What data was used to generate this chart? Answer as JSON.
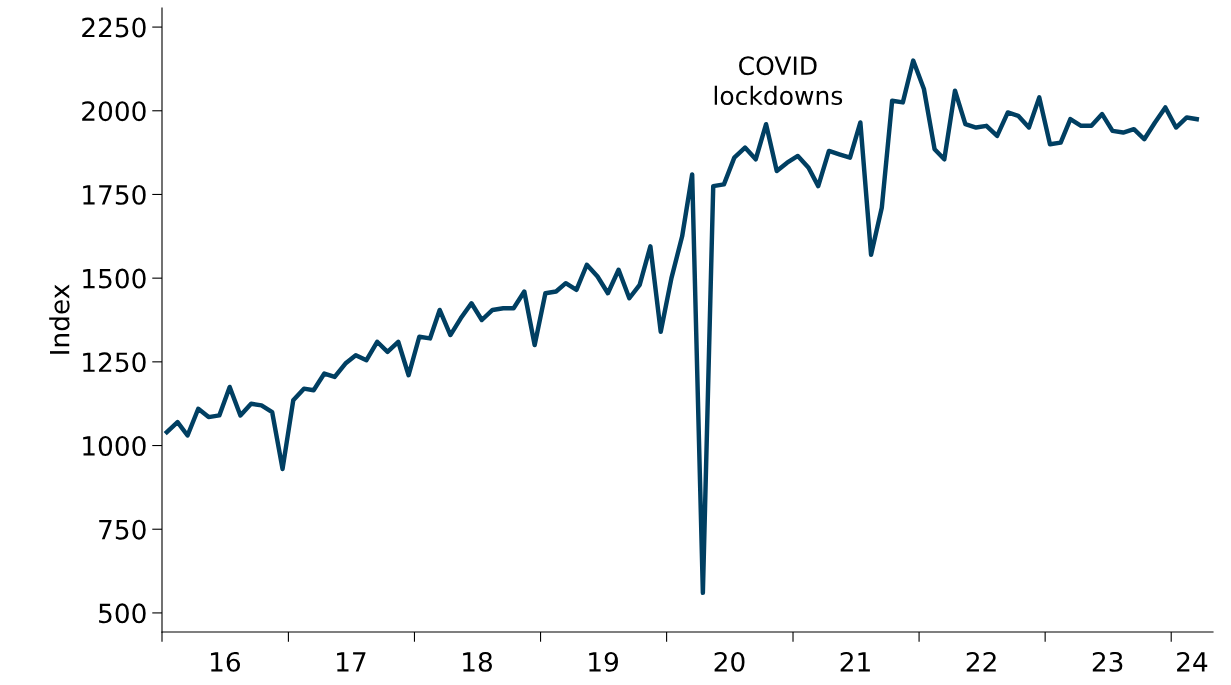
{
  "chart_data": {
    "type": "line",
    "ylabel": "Index",
    "x": [
      "2016-01-15",
      "2016-02-15",
      "2016-03-15",
      "2016-04-15",
      "2016-05-15",
      "2016-06-15",
      "2016-07-15",
      "2016-08-15",
      "2016-09-15",
      "2016-10-15",
      "2016-11-15",
      "2016-12-15",
      "2017-01-15",
      "2017-02-15",
      "2017-03-15",
      "2017-04-15",
      "2017-05-15",
      "2017-06-15",
      "2017-07-15",
      "2017-08-15",
      "2017-09-15",
      "2017-10-15",
      "2017-11-15",
      "2017-12-15",
      "2018-01-15",
      "2018-02-15",
      "2018-03-15",
      "2018-04-15",
      "2018-05-15",
      "2018-06-15",
      "2018-07-15",
      "2018-08-15",
      "2018-09-15",
      "2018-10-15",
      "2018-11-15",
      "2018-12-15",
      "2019-01-15",
      "2019-02-15",
      "2019-03-15",
      "2019-04-15",
      "2019-05-15",
      "2019-06-15",
      "2019-07-15",
      "2019-08-15",
      "2019-09-15",
      "2019-10-15",
      "2019-11-15",
      "2019-12-15",
      "2020-01-15",
      "2020-02-15",
      "2020-03-15",
      "2020-04-15",
      "2020-05-15",
      "2020-06-15",
      "2020-07-15",
      "2020-08-15",
      "2020-09-15",
      "2020-10-15",
      "2020-11-15",
      "2020-12-15",
      "2021-01-15",
      "2021-02-15",
      "2021-03-15",
      "2021-04-15",
      "2021-05-15",
      "2021-06-15",
      "2021-07-15",
      "2021-08-15",
      "2021-09-15",
      "2021-10-15",
      "2021-11-15",
      "2021-12-15",
      "2022-01-15",
      "2022-02-15",
      "2022-03-15",
      "2022-04-15",
      "2022-05-15",
      "2022-06-15",
      "2022-07-15",
      "2022-08-15",
      "2022-09-15",
      "2022-10-15",
      "2022-11-15",
      "2022-12-15",
      "2023-01-15",
      "2023-02-15",
      "2023-03-15",
      "2023-04-15",
      "2023-05-15",
      "2023-06-15",
      "2023-07-15",
      "2023-08-15",
      "2023-09-15",
      "2023-10-15",
      "2023-11-15",
      "2023-12-15",
      "2024-01-15",
      "2024-02-15",
      "2024-03-15"
    ],
    "series": [
      {
        "color": "#003f62",
        "values": [
          1040,
          1070,
          1030,
          1110,
          1085,
          1090,
          1175,
          1090,
          1125,
          1120,
          1100,
          930,
          1135,
          1170,
          1165,
          1215,
          1205,
          1245,
          1270,
          1255,
          1310,
          1280,
          1310,
          1210,
          1325,
          1320,
          1405,
          1330,
          1380,
          1425,
          1375,
          1405,
          1410,
          1410,
          1460,
          1300,
          1455,
          1460,
          1485,
          1465,
          1540,
          1505,
          1455,
          1525,
          1440,
          1480,
          1595,
          1340,
          1500,
          1625,
          1810,
          560,
          1775,
          1780,
          1860,
          1890,
          1855,
          1960,
          1820,
          1845,
          1865,
          1830,
          1775,
          1880,
          1870,
          1860,
          1965,
          1570,
          1710,
          2030,
          2025,
          2150,
          2065,
          1885,
          1855,
          2060,
          1960,
          1950,
          1955,
          1925,
          1995,
          1985,
          1950,
          2040,
          1900,
          1905,
          1975,
          1955,
          1955,
          1990,
          1940,
          1935,
          1945,
          1915,
          1965,
          2010,
          1950,
          1980,
          1975
        ]
      }
    ],
    "xlim": [
      "2016-01-01",
      "2024-05-01"
    ],
    "xticks": [
      {
        "value": "2016-01-01",
        "label": null
      },
      {
        "value": "2017-01-01",
        "label": null
      },
      {
        "value": "2018-01-01",
        "label": null
      },
      {
        "value": "2019-01-01",
        "label": null
      },
      {
        "value": "2020-01-01",
        "label": null
      },
      {
        "value": "2021-01-01",
        "label": null
      },
      {
        "value": "2022-01-01",
        "label": null
      },
      {
        "value": "2023-01-01",
        "label": null
      },
      {
        "value": "2024-01-01",
        "label": null
      },
      {
        "value": "2016-07-01",
        "label": "16"
      },
      {
        "value": "2017-07-01",
        "label": "17"
      },
      {
        "value": "2018-07-01",
        "label": "18"
      },
      {
        "value": "2019-07-01",
        "label": "19"
      },
      {
        "value": "2020-07-01",
        "label": "20"
      },
      {
        "value": "2021-07-01",
        "label": "21"
      },
      {
        "value": "2022-07-01",
        "label": "22"
      },
      {
        "value": "2023-07-01",
        "label": "23"
      },
      {
        "value": "2024-03-01",
        "label": "24"
      }
    ],
    "ylim": [
      443,
      2307
    ],
    "yticks": [
      500,
      750,
      1000,
      1250,
      1500,
      1750,
      2000,
      2250
    ],
    "annotations": [
      "COVID\nlockdowns"
    ],
    "grid": false,
    "legend": false,
    "marker": "none",
    "line_style": "solid"
  }
}
